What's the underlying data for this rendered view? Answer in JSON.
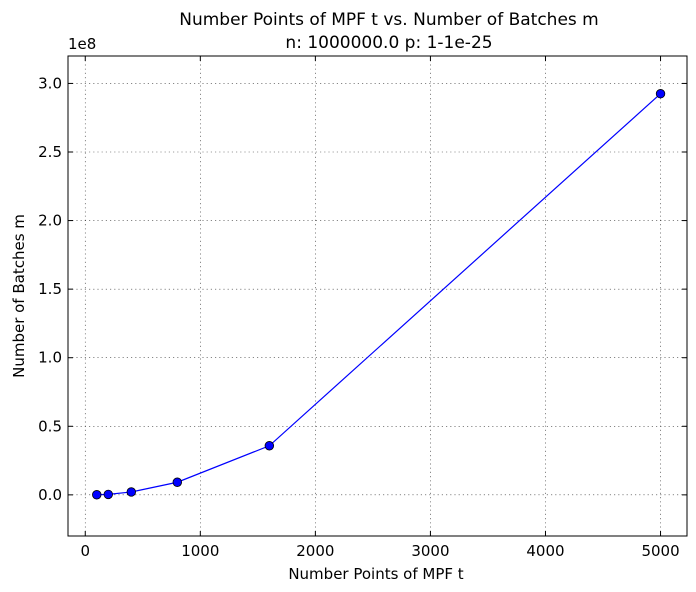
{
  "chart_data": {
    "type": "line",
    "title": "Number Points of MPF t vs. Number of Batches m",
    "subtitle": "n: 1000000.0 p: 1-1e-25",
    "xlabel": "Number Points of MPF t",
    "ylabel": "Number of Batches m",
    "y_offset_label": "1e8",
    "xlim": [
      -150,
      5230
    ],
    "ylim": [
      -30000000,
      320000000
    ],
    "xticks": [
      0,
      1000,
      2000,
      3000,
      4000,
      5000
    ],
    "xtick_labels": [
      "0",
      "1000",
      "2000",
      "3000",
      "4000",
      "5000"
    ],
    "yticks": [
      0,
      50000000,
      100000000,
      150000000,
      200000000,
      250000000,
      300000000
    ],
    "ytick_labels": [
      "0.0",
      "0.5",
      "1.0",
      "1.5",
      "2.0",
      "2.5",
      "3.0"
    ],
    "grid": true,
    "series": [
      {
        "color": "#0000ff",
        "marker": "circle",
        "x": [
          100,
          200,
          400,
          800,
          1600,
          5000
        ],
        "y": [
          80000,
          330000,
          2100000,
          9200000,
          35800000,
          292500000
        ]
      }
    ]
  }
}
